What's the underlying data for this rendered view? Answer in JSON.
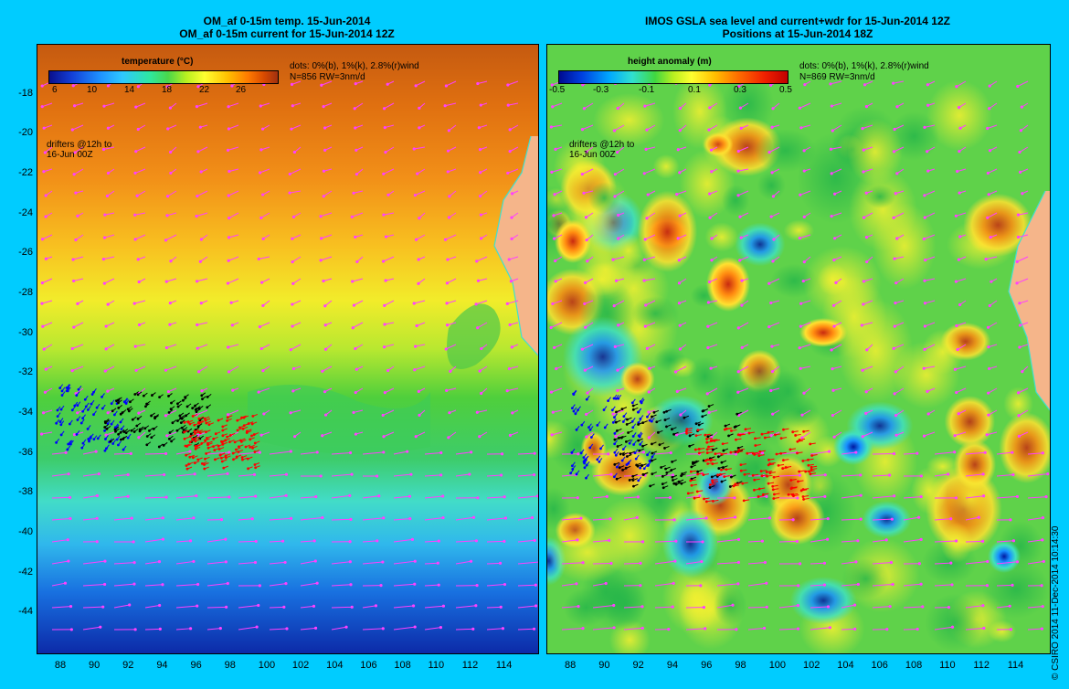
{
  "left_panel": {
    "title_line1": "OM_af 0-15m temp. 15-Jun-2014",
    "title_line2": "OM_af 0-15m current for 15-Jun-2014 12Z",
    "colorbar_title": "temperature (°C)",
    "colorbar_ticks": [
      "6",
      "10",
      "14",
      "18",
      "22",
      "26"
    ],
    "legend_line1": "dots: 0%(b), 1%(k), 2.8%(r)wind",
    "legend_line2": "N=856 RW=3nm/d",
    "drifter_note_line1": "drifters @12h to",
    "drifter_note_line2": "16-Jun 00Z"
  },
  "right_panel": {
    "title_line1": "IMOS GSLA sea level and current+wdr for 15-Jun-2014 12Z",
    "title_line2": "Positions at 15-Jun-2014 18Z",
    "colorbar_title": "height anomaly (m)",
    "colorbar_ticks": [
      "-0.5",
      "-0.3",
      "-0.1",
      "0.1",
      "0.3",
      "0.5"
    ],
    "legend_line1": "dots: 0%(b), 1%(k), 2.8%(r)wind",
    "legend_line2": "N=869 RW=3nm/d",
    "drifter_note_line1": "drifters @12h to",
    "drifter_note_line2": "16-Jun 00Z"
  },
  "map_data": {
    "lon_ticks": [
      "88",
      "90",
      "92",
      "94",
      "96",
      "98",
      "100",
      "102",
      "104",
      "106",
      "108",
      "110",
      "112",
      "114"
    ],
    "lat_ticks": [
      "-18",
      "-20",
      "-22",
      "-24",
      "-26",
      "-28",
      "-30",
      "-32",
      "-34",
      "-36",
      "-38",
      "-40",
      "-42",
      "-44"
    ],
    "lon_range": [
      86.5,
      116
    ],
    "lat_range": [
      -46,
      -15.5
    ],
    "colors": {
      "land": "#f5b58a",
      "coastline": "#40e0d0",
      "current_arrow": "#ff40ff",
      "drifter_0pct": "#0000ff",
      "drifter_1pct": "#000000",
      "drifter_2p8pct": "#ff0000"
    }
  },
  "credit": "© CSIRO 2014   11-Dec-2014 10:14:30"
}
